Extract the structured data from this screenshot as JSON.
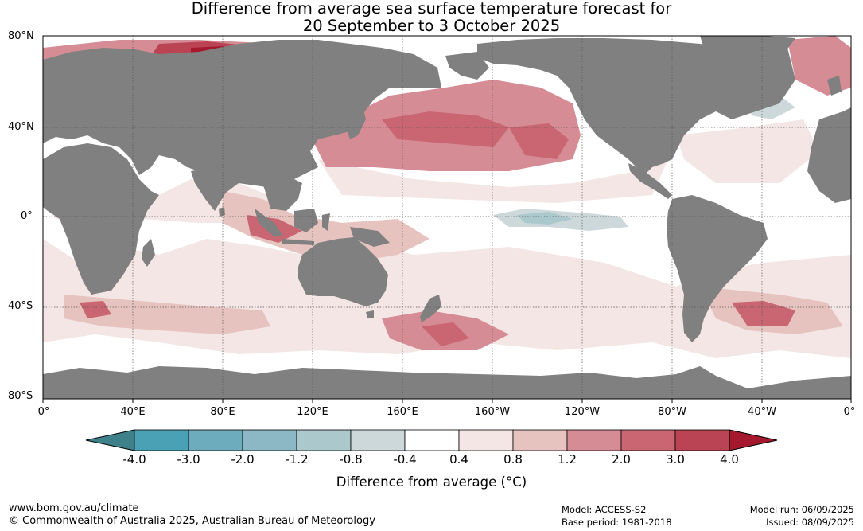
{
  "title_line1": "Difference from average sea surface temperature forecast for",
  "title_line2": "20 September to 3 October 2025",
  "lat_labels": [
    "80°N",
    "40°N",
    "0°",
    "40°S",
    "80°S"
  ],
  "lon_labels": [
    "0°",
    "40°E",
    "80°E",
    "120°E",
    "160°E",
    "160°W",
    "120°W",
    "80°W",
    "40°W",
    "0°"
  ],
  "colorbar": {
    "labels": [
      "-4.0",
      "-3.0",
      "-2.0",
      "-1.2",
      "-0.8",
      "-0.4",
      "0.4",
      "0.8",
      "1.2",
      "2.0",
      "3.0",
      "4.0"
    ],
    "colors": [
      "#3f818a",
      "#4aa0b4",
      "#6dacbd",
      "#8cb7c4",
      "#abc8cd",
      "#cdd8da",
      "#ffffff",
      "#f4e6e4",
      "#e7c3c0",
      "#d68c94",
      "#c96672",
      "#bb4454",
      "#a5192f"
    ],
    "title": "Difference from average (°C)"
  },
  "colors": {
    "land": "#808080",
    "ocean_neutral": "#ffffff",
    "ice": "#ffffff"
  },
  "footer": {
    "url": "www.bom.gov.au/climate",
    "copyright": "© Commonwealth of Australia 2025, Australian Bureau of Meteorology",
    "model": "Model: ACCESS-S2",
    "base_period": "Base period: 1981-2018",
    "model_run": "Model run: 06/09/2025",
    "issued": "Issued: 08/09/2025"
  }
}
